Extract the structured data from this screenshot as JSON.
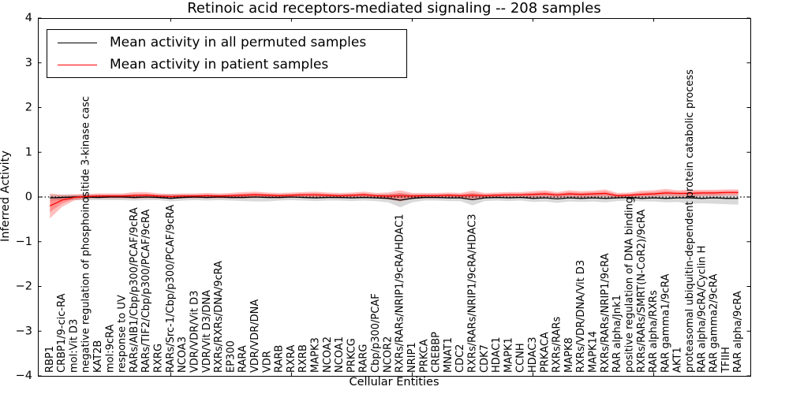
{
  "figure": {
    "title": "Retinoic acid receptors-mediated signaling -- 208 samples",
    "xlabel": "Cellular Entities",
    "ylabel": "Inferred Activity"
  },
  "legend": {
    "entries": [
      {
        "label": "Mean activity in all permuted samples",
        "color": "#000000"
      },
      {
        "label": "Mean activity in patient samples",
        "color": "#ff0000"
      }
    ]
  },
  "chart_data": {
    "type": "line",
    "title": "Retinoic acid receptors-mediated signaling -- 208 samples",
    "xlabel": "Cellular Entities",
    "ylabel": "Inferred Activity",
    "ylim": [
      -4,
      4
    ],
    "yticks": [
      -4,
      -3,
      -2,
      -1,
      0,
      1,
      2,
      3,
      4
    ],
    "xticks_data": [
      10,
      20,
      30,
      40,
      50
    ],
    "grid": false,
    "zero_line": true,
    "legend_position": "upper left",
    "categories": [
      "RBP1",
      "CRBP1/9-cic-RA",
      "mol:Vit D3",
      "negative regulation of phosphoinositide 3-kinase casc",
      "KAT2B",
      "mol:9cRA",
      "response to UV",
      "RARs/AIB1/Cbp/p300/PCAF/9cRA",
      "RARs/TIF2/Cbp/p300/PCAF/9cRA",
      "RXRG",
      "RARs/Src-1/Cbp/p300/PCAF/9cRA",
      "NCOA3",
      "VDR/VDR/Vit D3",
      "VDR/Vit D3/DNA",
      "RXRs/RXRs/DNA/9cRA",
      "EP300",
      "RARA",
      "VDR/VDR/DNA",
      "VDR",
      "RARB",
      "RXRA",
      "RXRB",
      "MAPK3",
      "NCOA2",
      "NCOA1",
      "PRKCG",
      "RARG",
      "Cbp/p300/PCAF",
      "NCOR2",
      "RXRs/RARs/NRIP1/9cRA/HDAC1",
      "NRIP1",
      "PRKCA",
      "CREBBP",
      "MNAT1",
      "CDC2",
      "RXRs/RARs/NRIP1/9cRA/HDAC3",
      "CDK7",
      "HDAC1",
      "MAPK1",
      "CCNH",
      "HDAC3",
      "PRKACA",
      "RXRs/RARs",
      "MAPK8",
      "RXRs/VDR/DNA/Vit D3",
      "MAPK14",
      "RXRs/RARs/NRIP1/9cRA",
      "RAR alpha/Jnk1",
      "positive regulation of DNA binding",
      "RXRs/RARs/SMRT(N-CoR2)/9cRA",
      "RAR alpha/RXRs",
      "RAR gamma1/9cRA",
      "AKT1",
      "proteasomal ubiquitin-dependent protein catabolic process",
      "RAR alpha/9cRA/Cyclin H",
      "RAR gamma2/9cRA",
      "TFIIH",
      "RAR alpha/9cRA"
    ],
    "series": [
      {
        "name": "Mean activity in all permuted samples",
        "color": "#000000",
        "band_color": "#808080",
        "values": [
          -0.02,
          -0.01,
          0.0,
          0.0,
          -0.01,
          0.0,
          0.0,
          -0.01,
          0.0,
          -0.01,
          -0.03,
          -0.01,
          0.0,
          -0.01,
          0.0,
          -0.01,
          -0.01,
          0.0,
          -0.01,
          -0.01,
          0.0,
          -0.01,
          -0.02,
          -0.01,
          -0.01,
          -0.02,
          -0.01,
          -0.02,
          -0.03,
          -0.07,
          -0.03,
          -0.01,
          -0.01,
          -0.02,
          -0.02,
          -0.06,
          -0.02,
          -0.01,
          -0.02,
          -0.01,
          -0.03,
          -0.02,
          -0.04,
          -0.02,
          -0.03,
          -0.02,
          -0.03,
          -0.02,
          -0.01,
          -0.03,
          -0.02,
          -0.03,
          -0.02,
          -0.02,
          -0.03,
          -0.02,
          -0.03,
          -0.03
        ],
        "band_hi": [
          0.05,
          0.05,
          0.05,
          0.05,
          0.05,
          0.05,
          0.05,
          0.06,
          0.05,
          0.05,
          0.06,
          0.05,
          0.05,
          0.05,
          0.05,
          0.05,
          0.06,
          0.06,
          0.06,
          0.05,
          0.05,
          0.05,
          0.06,
          0.05,
          0.05,
          0.05,
          0.06,
          0.05,
          0.06,
          0.08,
          0.06,
          0.05,
          0.05,
          0.05,
          0.05,
          0.07,
          0.05,
          0.05,
          0.05,
          0.05,
          0.06,
          0.06,
          0.06,
          0.06,
          0.06,
          0.06,
          0.06,
          0.05,
          0.05,
          0.06,
          0.06,
          0.06,
          0.06,
          0.06,
          0.06,
          0.06,
          0.06,
          0.06
        ],
        "band_lo": [
          -0.08,
          -0.07,
          -0.07,
          -0.07,
          -0.07,
          -0.07,
          -0.07,
          -0.08,
          -0.07,
          -0.07,
          -0.1,
          -0.08,
          -0.07,
          -0.08,
          -0.07,
          -0.08,
          -0.09,
          -0.1,
          -0.1,
          -0.08,
          -0.07,
          -0.08,
          -0.09,
          -0.08,
          -0.08,
          -0.09,
          -0.08,
          -0.09,
          -0.12,
          -0.23,
          -0.12,
          -0.08,
          -0.08,
          -0.09,
          -0.09,
          -0.19,
          -0.09,
          -0.08,
          -0.09,
          -0.08,
          -0.11,
          -0.1,
          -0.13,
          -0.1,
          -0.11,
          -0.1,
          -0.12,
          -0.09,
          -0.08,
          -0.1,
          -0.1,
          -0.12,
          -0.11,
          -0.15,
          -0.14,
          -0.15,
          -0.16,
          -0.17
        ]
      },
      {
        "name": "Mean activity in patient samples",
        "color": "#ff0000",
        "band_color": "#ff0000",
        "values": [
          -0.2,
          -0.07,
          -0.01,
          0.01,
          0.02,
          0.02,
          0.02,
          0.03,
          0.04,
          0.02,
          0.01,
          0.02,
          0.02,
          0.03,
          0.02,
          0.03,
          0.04,
          0.05,
          0.04,
          0.03,
          0.04,
          0.05,
          0.05,
          0.04,
          0.03,
          0.04,
          0.05,
          0.03,
          0.02,
          0.03,
          0.02,
          0.03,
          0.03,
          0.04,
          0.03,
          0.04,
          0.03,
          0.04,
          0.05,
          0.05,
          0.06,
          0.07,
          0.05,
          0.07,
          0.06,
          0.07,
          0.08,
          0.03,
          0.04,
          0.06,
          0.07,
          0.09,
          0.08,
          0.08,
          0.09,
          0.09,
          0.1,
          0.1
        ],
        "band_hi": [
          0.08,
          0.05,
          0.06,
          0.07,
          0.08,
          0.08,
          0.08,
          0.11,
          0.11,
          0.08,
          0.07,
          0.08,
          0.08,
          0.09,
          0.08,
          0.09,
          0.11,
          0.12,
          0.1,
          0.09,
          0.1,
          0.11,
          0.12,
          0.1,
          0.09,
          0.1,
          0.12,
          0.09,
          0.1,
          0.15,
          0.09,
          0.09,
          0.09,
          0.1,
          0.09,
          0.14,
          0.09,
          0.1,
          0.11,
          0.11,
          0.13,
          0.15,
          0.11,
          0.15,
          0.13,
          0.14,
          0.17,
          0.09,
          0.1,
          0.14,
          0.15,
          0.18,
          0.15,
          0.16,
          0.16,
          0.16,
          0.17,
          0.17
        ],
        "band_lo": [
          -0.48,
          -0.22,
          -0.08,
          -0.04,
          -0.03,
          -0.03,
          -0.03,
          -0.04,
          -0.03,
          -0.03,
          -0.04,
          -0.03,
          -0.03,
          -0.03,
          -0.03,
          -0.03,
          -0.03,
          -0.02,
          -0.02,
          -0.03,
          -0.02,
          -0.02,
          -0.02,
          -0.02,
          -0.03,
          -0.02,
          -0.02,
          -0.03,
          -0.05,
          -0.1,
          -0.04,
          -0.03,
          -0.03,
          -0.02,
          -0.03,
          -0.07,
          -0.03,
          -0.02,
          -0.01,
          -0.01,
          -0.01,
          0.0,
          -0.02,
          0.0,
          -0.01,
          0.0,
          0.01,
          -0.02,
          -0.01,
          0.0,
          0.01,
          0.02,
          0.01,
          0.01,
          0.02,
          0.02,
          0.03,
          0.03
        ]
      }
    ]
  }
}
